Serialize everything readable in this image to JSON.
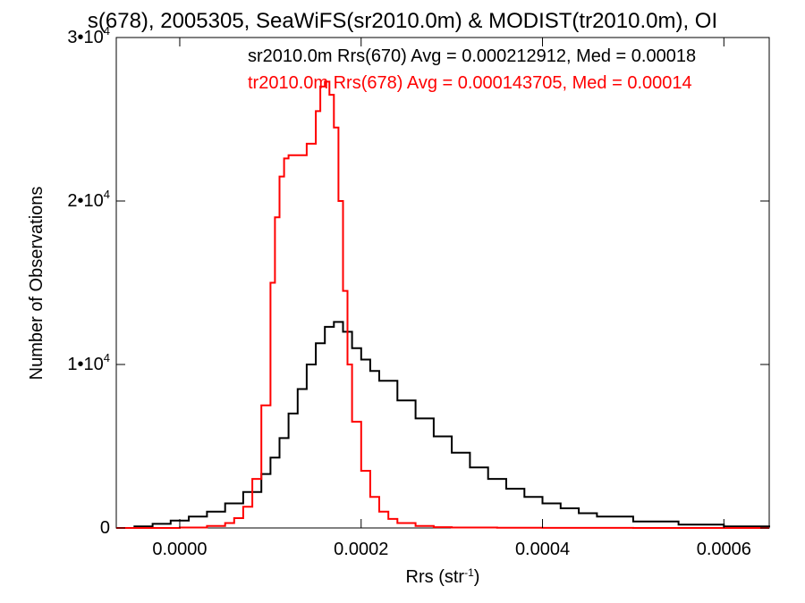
{
  "chart_data": {
    "type": "line",
    "title": "s(678), 2005305, SeaWiFS(sr2010.0m) & MODIST(tr2010.0m), OI",
    "xlabel": "Rrs (str",
    "xlabel_sup": "-1",
    "xlabel_close": ")",
    "ylabel": "Number of Observations",
    "xlim": [
      -7e-05,
      0.00065
    ],
    "ylim": [
      0,
      30000
    ],
    "xticks": [
      {
        "value": 0.0,
        "label": "0.0000"
      },
      {
        "value": 0.0002,
        "label": "0.0002"
      },
      {
        "value": 0.0004,
        "label": "0.0004"
      },
      {
        "value": 0.0006,
        "label": "0.0006"
      }
    ],
    "yticks": [
      {
        "value": 0,
        "base": "0",
        "exp": ""
      },
      {
        "value": 10000,
        "base": "1•10",
        "exp": "4"
      },
      {
        "value": 20000,
        "base": "2•10",
        "exp": "4"
      },
      {
        "value": 30000,
        "base": "3•10",
        "exp": "4"
      }
    ],
    "grid": false,
    "annotations": [
      {
        "text": "sr2010.0m Rrs(670) Avg = 0.000212912, Med = 0.00018",
        "color": "#000000"
      },
      {
        "text": "tr2010.0m Rrs(678) Avg = 0.000143705, Med = 0.00014",
        "color": "#ff0000"
      }
    ],
    "series": [
      {
        "color": "#000000",
        "x": [
          -7e-05,
          -5e-05,
          -3e-05,
          -1e-05,
          1e-05,
          3e-05,
          5e-05,
          7e-05,
          9e-05,
          0.0001,
          0.00011,
          0.00012,
          0.00013,
          0.00014,
          0.00015,
          0.00016,
          0.00017,
          0.00018,
          0.00019,
          0.0002,
          0.00021,
          0.00022,
          0.00024,
          0.00026,
          0.00028,
          0.0003,
          0.00032,
          0.00034,
          0.00036,
          0.00038,
          0.0004,
          0.00042,
          0.00044,
          0.00046,
          0.0005,
          0.00055,
          0.0006,
          0.00065
        ],
        "y": [
          0,
          100,
          250,
          450,
          700,
          1000,
          1500,
          2200,
          3300,
          4300,
          5500,
          7000,
          8500,
          10000,
          11300,
          12300,
          12600,
          12000,
          11000,
          10300,
          9600,
          9000,
          7800,
          6700,
          5600,
          4600,
          3700,
          3000,
          2400,
          1900,
          1500,
          1200,
          900,
          700,
          400,
          200,
          100,
          50
        ]
      },
      {
        "color": "#ff0000",
        "x": [
          -7e-05,
          -3e-05,
          0.0,
          3e-05,
          5e-05,
          6e-05,
          7e-05,
          8e-05,
          9e-05,
          0.0001,
          0.000105,
          0.00011,
          0.000115,
          0.00012,
          0.00013,
          0.00014,
          0.00015,
          0.000155,
          0.00016,
          0.000165,
          0.00017,
          0.000175,
          0.00018,
          0.000185,
          0.00019,
          0.0002,
          0.00021,
          0.00022,
          0.00023,
          0.00024,
          0.00026,
          0.00028,
          0.0003,
          0.00035,
          0.0004,
          0.0005,
          0.00065
        ],
        "y": [
          0,
          0,
          30,
          120,
          300,
          600,
          1300,
          3000,
          7500,
          15000,
          19000,
          21500,
          22600,
          22800,
          22800,
          23500,
          25500,
          27000,
          27300,
          26500,
          24500,
          20000,
          14500,
          10000,
          6500,
          3500,
          1900,
          1000,
          550,
          300,
          120,
          50,
          25,
          10,
          5,
          2,
          0
        ]
      }
    ]
  }
}
